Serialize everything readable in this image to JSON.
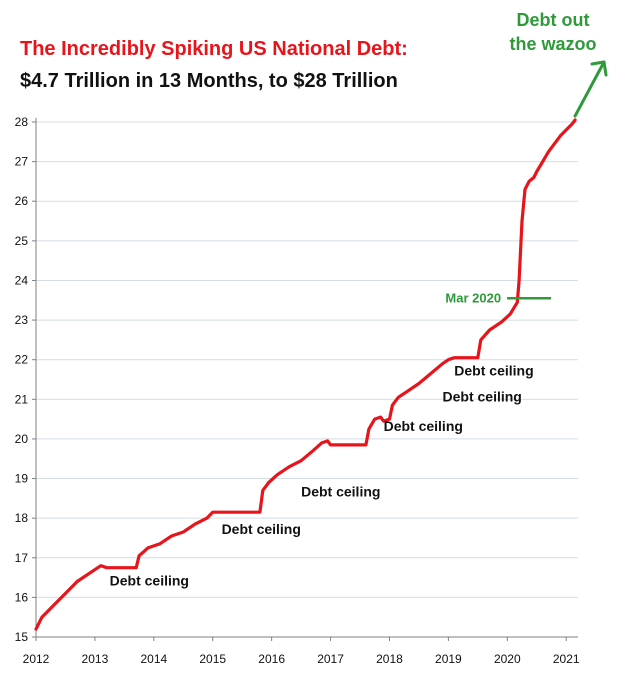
{
  "colors": {
    "line": "#e8141b",
    "title_red": "#e8141b",
    "title_dark": "#111111",
    "annotation_green": "#2e9a3a",
    "grid": "#d4dce8",
    "axis": "#7f7f7f",
    "label_text": "#111111"
  },
  "header": {
    "title_line1": "The Incredibly Spiking US National Debt:",
    "title_line2": "$4.7 Trillion in 13 Months, to $28 Trillion"
  },
  "annotations": {
    "wazoo_line1": "Debt out",
    "wazoo_line2": "the wazoo",
    "mar2020": "Mar 2020",
    "ceiling_labels": [
      "Debt ceiling",
      "Debt ceiling",
      "Debt ceiling",
      "Debt ceiling",
      "Debt ceiling",
      "Debt ceiling"
    ]
  },
  "chart_data": {
    "type": "line",
    "title": "The Incredibly Spiking US National Debt:",
    "subtitle": "$4.7 Trillion in 13 Months, to $28 Trillion",
    "xlabel": "",
    "ylabel": "",
    "xlim": [
      2012,
      2021.2
    ],
    "ylim": [
      15,
      28
    ],
    "x_ticks": [
      "2012",
      "2013",
      "2014",
      "2015",
      "2016",
      "2017",
      "2018",
      "2019",
      "2020",
      "2021"
    ],
    "y_ticks": [
      "15",
      "16",
      "17",
      "18",
      "19",
      "20",
      "21",
      "22",
      "23",
      "24",
      "25",
      "26",
      "27",
      "28"
    ],
    "grid": "horizontal",
    "series": [
      {
        "x": [
          2012.0,
          2012.1,
          2012.3,
          2012.5,
          2012.7,
          2012.9,
          2013.1,
          2013.2,
          2013.7,
          2013.75,
          2013.9,
          2014.1,
          2014.3,
          2014.5,
          2014.7,
          2014.9,
          2015.0,
          2015.8,
          2015.85,
          2015.95,
          2016.1,
          2016.3,
          2016.5,
          2016.7,
          2016.85,
          2016.95,
          2017.0,
          2017.6,
          2017.65,
          2017.75,
          2017.85,
          2017.9,
          2018.0,
          2018.05,
          2018.15,
          2018.3,
          2018.5,
          2018.7,
          2018.9,
          2019.0,
          2019.1,
          2019.5,
          2019.55,
          2019.7,
          2019.9,
          2020.05,
          2020.17,
          2020.2,
          2020.25,
          2020.3,
          2020.37,
          2020.45,
          2020.5,
          2020.6,
          2020.7,
          2020.8,
          2020.9,
          2021.0,
          2021.1,
          2021.15
        ],
        "y": [
          15.2,
          15.5,
          15.8,
          16.1,
          16.4,
          16.6,
          16.8,
          16.75,
          16.75,
          17.05,
          17.25,
          17.35,
          17.55,
          17.65,
          17.85,
          18.0,
          18.15,
          18.15,
          18.7,
          18.9,
          19.1,
          19.3,
          19.45,
          19.7,
          19.9,
          19.95,
          19.85,
          19.85,
          20.25,
          20.5,
          20.55,
          20.45,
          20.5,
          20.85,
          21.05,
          21.2,
          21.4,
          21.65,
          21.9,
          22.0,
          22.05,
          22.05,
          22.5,
          22.75,
          22.95,
          23.15,
          23.45,
          24.0,
          25.5,
          26.3,
          26.5,
          26.6,
          26.75,
          27.0,
          27.25,
          27.45,
          27.65,
          27.8,
          27.95,
          28.05
        ]
      }
    ]
  }
}
